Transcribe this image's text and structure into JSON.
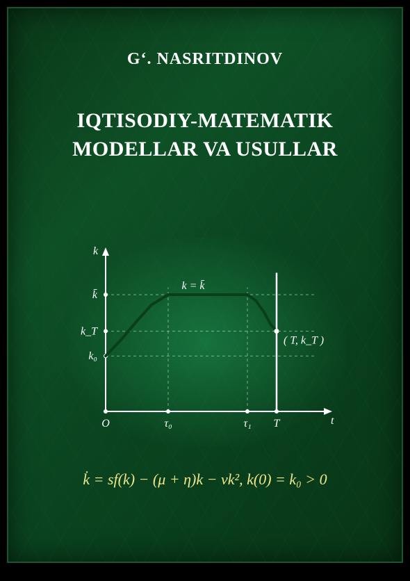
{
  "author": "Gʻ. NASRITDINOV",
  "author_fontsize": 24,
  "title_line1": "IQTISODIY-MATEMATIK",
  "title_line2": "MODELLAR VA USULLAR",
  "title_fontsize": 30,
  "formula": "k̇ = sf(k) − (μ + η)k − νk²,    k(0) = k₀ > 0",
  "formula_fontsize": 22,
  "text_color": "#ffffff",
  "formula_color": "#f0e68c",
  "bg_color": "#0a3818",
  "chart": {
    "type": "line",
    "axis_color": "#ffffff",
    "curve_color": "#0b3f1c",
    "ref_color": "#c8f0d0",
    "label_color": "#ffffff",
    "fontsize": 16,
    "stroke_width": 2.5,
    "y_label": "k",
    "x_label": "t",
    "y_ticks": [
      "k̄",
      "k_T",
      "k₀"
    ],
    "y_tick_vals": [
      0.8,
      0.55,
      0.38
    ],
    "x_ticks": [
      "O",
      "τ₀",
      "τ₁",
      "T"
    ],
    "x_tick_vals": [
      0.0,
      0.3,
      0.68,
      0.82
    ],
    "topline_label": "k = k̄",
    "point_label": "( T, k_T )",
    "curve": [
      {
        "x": 0.0,
        "y": 0.38
      },
      {
        "x": 0.08,
        "y": 0.5
      },
      {
        "x": 0.15,
        "y": 0.62
      },
      {
        "x": 0.22,
        "y": 0.73
      },
      {
        "x": 0.3,
        "y": 0.8
      },
      {
        "x": 0.5,
        "y": 0.8
      },
      {
        "x": 0.68,
        "y": 0.8
      },
      {
        "x": 0.72,
        "y": 0.76
      },
      {
        "x": 0.76,
        "y": 0.68
      },
      {
        "x": 0.79,
        "y": 0.6
      },
      {
        "x": 0.82,
        "y": 0.55
      }
    ]
  }
}
